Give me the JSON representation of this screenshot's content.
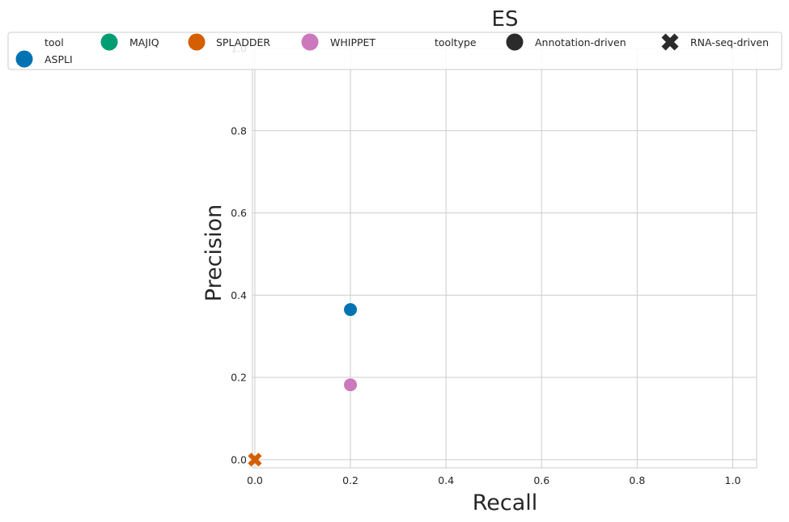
{
  "chart_data": {
    "type": "scatter",
    "title": "ES",
    "xlabel": "Recall",
    "ylabel": "Precision",
    "xlim": [
      -0.005,
      1.05
    ],
    "ylim": [
      -0.02,
      1.0
    ],
    "xticks": [
      0.0,
      0.2,
      0.4,
      0.6,
      0.8,
      1.0
    ],
    "xtick_labels": [
      "0.0",
      "0.2",
      "0.4",
      "0.6",
      "0.8",
      "1.0"
    ],
    "yticks": [
      0.0,
      0.2,
      0.4,
      0.6,
      0.8,
      1.0
    ],
    "ytick_labels": [
      "0.0",
      "0.2",
      "0.4",
      "0.6",
      "0.8",
      "1.0"
    ],
    "grid": true,
    "legend_placement": "top",
    "colors": {
      "ASPLI": "#0173b2",
      "MAJIQ": "#029e73",
      "SPLADDER": "#d55e00",
      "WHIPPET": "#cc78bc",
      "tooltype": "#2b2b2b"
    },
    "legend": {
      "tool_header": "tool",
      "tools": [
        "ASPLI",
        "MAJIQ",
        "SPLADDER",
        "WHIPPET"
      ],
      "tooltype_header": "tooltype",
      "tooltypes": [
        {
          "label": "Annotation-driven",
          "marker": "circle"
        },
        {
          "label": "RNA-seq-driven",
          "marker": "x"
        }
      ]
    },
    "points": [
      {
        "tool": "ASPLI",
        "tooltype": "Annotation-driven",
        "x": 0.2,
        "y": 0.365
      },
      {
        "tool": "WHIPPET",
        "tooltype": "Annotation-driven",
        "x": 0.2,
        "y": 0.182
      },
      {
        "tool": "SPLADDER",
        "tooltype": "RNA-seq-driven",
        "x": 0.0,
        "y": 0.0
      }
    ]
  }
}
